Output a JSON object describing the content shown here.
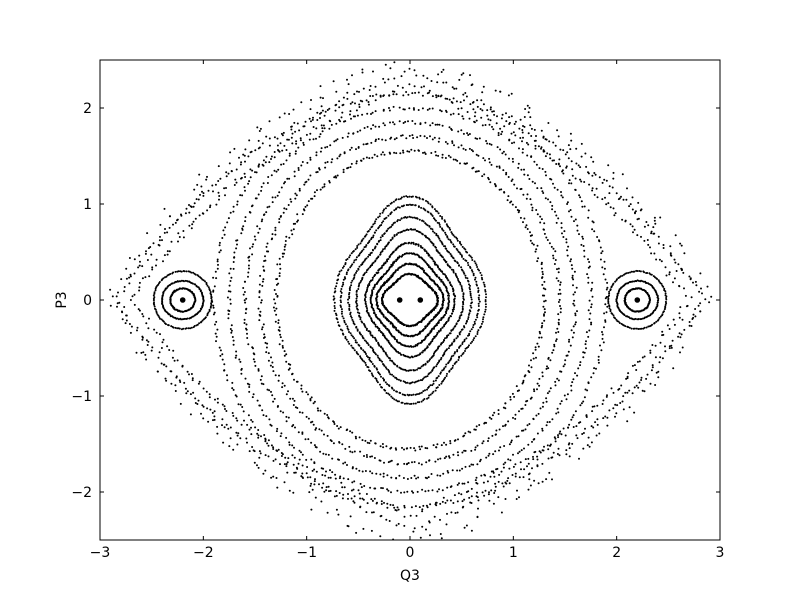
{
  "chart_data": {
    "type": "scatter",
    "title": "",
    "xlabel": "Q3",
    "ylabel": "P3",
    "xlim": [
      -3,
      3
    ],
    "ylim": [
      -2.5,
      2.5
    ],
    "xticks": [
      -3,
      -2,
      -1,
      0,
      1,
      2,
      3
    ],
    "yticks": [
      -2,
      -1,
      0,
      1,
      2
    ],
    "xtick_labels": [
      "−3",
      "−2",
      "−1",
      "0",
      "1",
      "2",
      "3"
    ],
    "ytick_labels": [
      "−2",
      "−1",
      "0",
      "1",
      "2"
    ],
    "grid": false,
    "marker_color": "#000000",
    "fixed_points": [
      {
        "x": -2.2,
        "y": 0
      },
      {
        "x": 2.2,
        "y": 0
      },
      {
        "x": -0.1,
        "y": 0
      },
      {
        "x": 0.1,
        "y": 0
      }
    ],
    "orbit_families": [
      {
        "kind": "island",
        "cx": -2.2,
        "cy": 0,
        "rx": [
          0.12,
          0.2,
          0.28
        ],
        "ry": [
          0.12,
          0.2,
          0.3
        ]
      },
      {
        "kind": "island",
        "cx": 2.2,
        "cy": 0,
        "rx": [
          0.12,
          0.2,
          0.28
        ],
        "ry": [
          0.12,
          0.2,
          0.3
        ]
      },
      {
        "kind": "core",
        "cx": 0,
        "cy": 0,
        "rx": [
          0.25,
          0.3,
          0.35,
          0.4,
          0.48,
          0.55,
          0.62,
          0.68
        ],
        "ry": [
          0.25,
          0.35,
          0.45,
          0.55,
          0.68,
          0.8,
          0.92,
          1.0
        ]
      },
      {
        "kind": "ring",
        "cx": 0,
        "cy": 0,
        "rx": [
          1.3,
          1.45,
          1.6,
          1.75,
          1.9
        ],
        "ry": [
          1.55,
          1.7,
          1.85,
          2.0,
          2.15
        ]
      },
      {
        "kind": "separatrix",
        "cx": 0,
        "cy": 0,
        "rx": [
          2.7,
          2.85
        ],
        "ry": [
          2.25,
          2.4
        ]
      },
      {
        "kind": "chaotic-outer",
        "cx": 0,
        "cy": 0,
        "rx": [
          2.9
        ],
        "ry": [
          2.6
        ]
      }
    ]
  }
}
